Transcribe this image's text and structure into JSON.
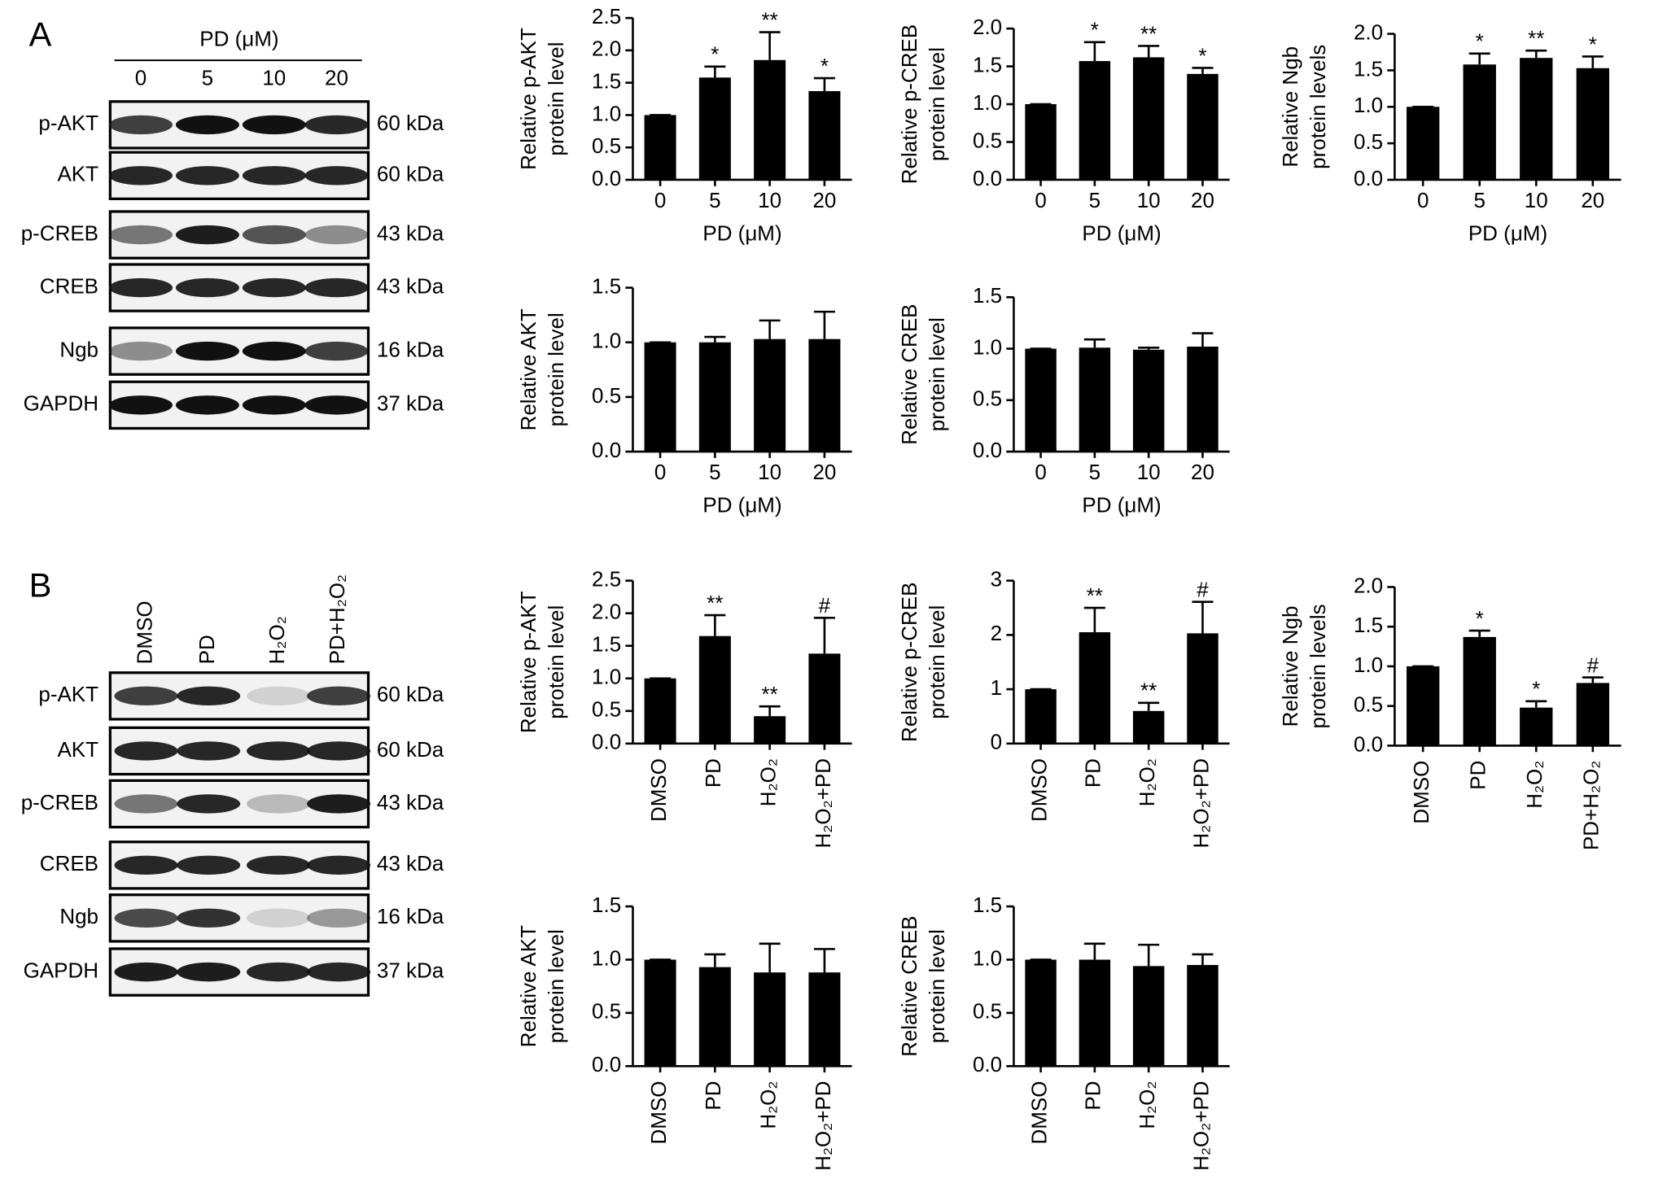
{
  "blots": [
    {
      "label": "A",
      "header": "PD (μM)",
      "lanes": [
        "0",
        "5",
        "10",
        "20"
      ],
      "rows": [
        {
          "name": "p-AKT",
          "size": "60 kDa"
        },
        {
          "name": "AKT",
          "size": "60 kDa"
        },
        {
          "name": "p-CREB",
          "size": "43 kDa"
        },
        {
          "name": "CREB",
          "size": "43 kDa"
        },
        {
          "name": "Ngb",
          "size": "16 kDa"
        },
        {
          "name": "GAPDH",
          "size": "37 kDa"
        }
      ]
    },
    {
      "label": "B",
      "lanes": [
        "DMSO",
        "PD",
        "H₂O₂",
        "PD+H₂O₂"
      ],
      "rows": [
        {
          "name": "p-AKT",
          "size": "60 kDa"
        },
        {
          "name": "AKT",
          "size": "60 kDa"
        },
        {
          "name": "p-CREB",
          "size": "43 kDa"
        },
        {
          "name": "CREB",
          "size": "43 kDa"
        },
        {
          "name": "Ngb",
          "size": "16 kDa"
        },
        {
          "name": "GAPDH",
          "size": "37 kDa"
        }
      ]
    }
  ],
  "chart_data": [
    {
      "type": "bar",
      "ylabel": [
        "Relative p-AKT",
        "protein level"
      ],
      "xlabel": "PD (μM)",
      "categories": [
        "0",
        "5",
        "10",
        "20"
      ],
      "values": [
        1,
        1.58,
        1.85,
        1.37
      ],
      "errors": [
        0,
        0.17,
        0.43,
        0.2
      ],
      "annotations": [
        null,
        "*",
        "**",
        "*"
      ],
      "color": "#000000",
      "ylim": [
        0,
        2.5
      ],
      "yticks": [
        {
          "value": 0,
          "label": "0.0"
        },
        {
          "value": 0.5,
          "label": "0.5"
        },
        {
          "value": 1,
          "label": "1.0"
        },
        {
          "value": 1.5,
          "label": "1.5"
        },
        {
          "value": 2,
          "label": "2.0"
        },
        {
          "value": 2.5,
          "label": "2.5"
        }
      ]
    },
    {
      "type": "bar",
      "ylabel": [
        "Relative p-CREB",
        "protein level"
      ],
      "xlabel": "PD (μM)",
      "categories": [
        "0",
        "5",
        "10",
        "20"
      ],
      "values": [
        1,
        1.57,
        1.62,
        1.4
      ],
      "errors": [
        0,
        0.25,
        0.15,
        0.08
      ],
      "annotations": [
        null,
        "*",
        "**",
        "*"
      ],
      "color": "#000000",
      "ylim": [
        0,
        2
      ],
      "yticks": [
        {
          "value": 0,
          "label": "0.0"
        },
        {
          "value": 0.5,
          "label": "0.5"
        },
        {
          "value": 1,
          "label": "1.0"
        },
        {
          "value": 1.5,
          "label": "1.5"
        },
        {
          "value": 2,
          "label": "2.0"
        }
      ]
    },
    {
      "type": "bar",
      "ylabel": [
        "Relative Ngb",
        "protein levels"
      ],
      "xlabel": "PD (μM)",
      "categories": [
        "0",
        "5",
        "10",
        "20"
      ],
      "values": [
        1,
        1.58,
        1.67,
        1.53
      ],
      "errors": [
        0,
        0.15,
        0.1,
        0.16
      ],
      "annotations": [
        null,
        "*",
        "**",
        "*"
      ],
      "color": "#000000",
      "ylim": [
        0,
        2
      ],
      "yticks": [
        {
          "value": 0,
          "label": "0.0"
        },
        {
          "value": 0.5,
          "label": "0.5"
        },
        {
          "value": 1,
          "label": "1.0"
        },
        {
          "value": 1.5,
          "label": "1.5"
        },
        {
          "value": 2,
          "label": "2.0"
        }
      ]
    },
    {
      "type": "bar",
      "ylabel": [
        "Relative AKT",
        "protein level"
      ],
      "xlabel": "PD (μM)",
      "categories": [
        "0",
        "5",
        "10",
        "20"
      ],
      "values": [
        1,
        1,
        1.03,
        1.03
      ],
      "errors": [
        0,
        0.05,
        0.17,
        0.25
      ],
      "color": "#000000",
      "ylim": [
        0,
        1.5
      ],
      "yticks": [
        {
          "value": 0,
          "label": "0.0"
        },
        {
          "value": 0.5,
          "label": "0.5"
        },
        {
          "value": 1,
          "label": "1.0"
        },
        {
          "value": 1.5,
          "label": "1.5"
        }
      ]
    },
    {
      "type": "bar",
      "ylabel": [
        "Relative CREB",
        "protein level"
      ],
      "xlabel": "PD (μM)",
      "categories": [
        "0",
        "5",
        "10",
        "20"
      ],
      "values": [
        1,
        1.01,
        0.99,
        1.02
      ],
      "errors": [
        0,
        0.08,
        0.02,
        0.13
      ],
      "color": "#000000",
      "ylim": [
        0,
        1.5
      ],
      "yticks": [
        {
          "value": 0,
          "label": "0.0"
        },
        {
          "value": 0.5,
          "label": "0.5"
        },
        {
          "value": 1,
          "label": "1.0"
        },
        {
          "value": 1.5,
          "label": "1.5"
        }
      ]
    },
    {
      "type": "bar",
      "ylabel": [
        "Relative p-AKT",
        "protein level"
      ],
      "categories": [
        "DMSO",
        "PD",
        "H₂O₂",
        "H₂O₂+PD"
      ],
      "xtick_rotation": 90,
      "values": [
        1,
        1.65,
        0.42,
        1.38
      ],
      "errors": [
        0,
        0.32,
        0.15,
        0.55
      ],
      "annotations": [
        null,
        "**",
        "**",
        "#"
      ],
      "color": "#000000",
      "ylim": [
        0,
        2.5
      ],
      "yticks": [
        {
          "value": 0,
          "label": "0.0"
        },
        {
          "value": 0.5,
          "label": "0.5"
        },
        {
          "value": 1,
          "label": "1.0"
        },
        {
          "value": 1.5,
          "label": "1.5"
        },
        {
          "value": 2,
          "label": "2.0"
        },
        {
          "value": 2.5,
          "label": "2.5"
        }
      ]
    },
    {
      "type": "bar",
      "ylabel": [
        "Relative p-CREB",
        "protein level"
      ],
      "categories": [
        "DMSO",
        "PD",
        "H₂O₂",
        "H₂O₂+PD"
      ],
      "xtick_rotation": 90,
      "values": [
        1,
        2.05,
        0.6,
        2.03
      ],
      "errors": [
        0,
        0.45,
        0.15,
        0.58
      ],
      "annotations": [
        null,
        "**",
        "**",
        "#"
      ],
      "color": "#000000",
      "ylim": [
        0,
        3
      ],
      "yticks": [
        0,
        1,
        2,
        3
      ]
    },
    {
      "type": "bar",
      "ylabel": [
        "Relative Ngb",
        "protein levels"
      ],
      "categories": [
        "DMSO",
        "PD",
        "H₂O₂",
        "PD+H₂O₂"
      ],
      "xtick_rotation": 90,
      "values": [
        1,
        1.37,
        0.48,
        0.79
      ],
      "errors": [
        0,
        0.08,
        0.08,
        0.07
      ],
      "annotations": [
        null,
        "*",
        "*",
        "#"
      ],
      "color": "#000000",
      "ylim": [
        0,
        2
      ],
      "yticks": [
        {
          "value": 0,
          "label": "0.0"
        },
        {
          "value": 0.5,
          "label": "0.5"
        },
        {
          "value": 1,
          "label": "1.0"
        },
        {
          "value": 1.5,
          "label": "1.5"
        },
        {
          "value": 2,
          "label": "2.0"
        }
      ]
    },
    {
      "type": "bar",
      "ylabel": [
        "Relative AKT",
        "protein level"
      ],
      "categories": [
        "DMSO",
        "PD",
        "H₂O₂",
        "H₂O₂+PD"
      ],
      "xtick_rotation": 90,
      "values": [
        1,
        0.93,
        0.88,
        0.88
      ],
      "errors": [
        0,
        0.12,
        0.27,
        0.22
      ],
      "color": "#000000",
      "ylim": [
        0,
        1.5
      ],
      "yticks": [
        {
          "value": 0,
          "label": "0.0"
        },
        {
          "value": 0.5,
          "label": "0.5"
        },
        {
          "value": 1,
          "label": "1.0"
        },
        {
          "value": 1.5,
          "label": "1.5"
        }
      ]
    },
    {
      "type": "bar",
      "ylabel": [
        "Relative CREB",
        "protein level"
      ],
      "categories": [
        "DMSO",
        "PD",
        "H₂O₂",
        "H₂O₂+PD"
      ],
      "xtick_rotation": 90,
      "values": [
        1,
        1,
        0.94,
        0.95
      ],
      "errors": [
        0,
        0.15,
        0.2,
        0.1
      ],
      "color": "#000000",
      "ylim": [
        0,
        1.5
      ],
      "yticks": [
        {
          "value": 0,
          "label": "0.0"
        },
        {
          "value": 0.5,
          "label": "0.5"
        },
        {
          "value": 1,
          "label": "1.0"
        },
        {
          "value": 1.5,
          "label": "1.5"
        }
      ]
    }
  ]
}
